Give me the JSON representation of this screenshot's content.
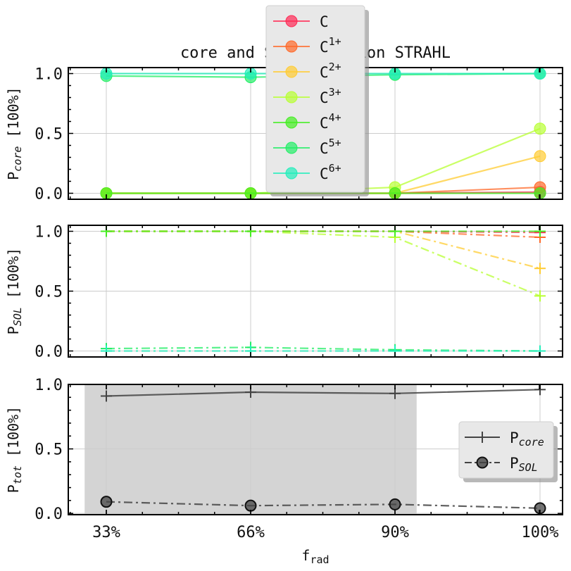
{
  "figure_title": "core and SOL radiation STRAHL",
  "chart_data": [
    {
      "type": "line",
      "id": "core",
      "ylabel_main": "P",
      "ylabel_sub": "core",
      "ylabel_unit": "[100%]",
      "ylim": [
        -0.05,
        1.05
      ],
      "yticks": [
        "0.0",
        "0.5",
        "1.0"
      ],
      "x_categories": [
        "33%",
        "66%",
        "90%",
        "100%"
      ],
      "marker": "circle",
      "linestyle": "solid",
      "series": [
        {
          "name": "C",
          "color": "#ff2a55",
          "values": [
            0.0,
            0.0,
            0.0,
            0.01
          ]
        },
        {
          "name": "C^{1+}",
          "color": "#ff6a2a",
          "values": [
            0.0,
            0.0,
            0.0,
            0.05
          ]
        },
        {
          "name": "C^{2+}",
          "color": "#ffcc33",
          "values": [
            0.0,
            0.0,
            0.0,
            0.31
          ]
        },
        {
          "name": "C^{3+}",
          "color": "#b8ff33",
          "values": [
            0.0,
            0.0,
            0.05,
            0.54
          ]
        },
        {
          "name": "C^{4+}",
          "color": "#44ee22",
          "values": [
            0.0,
            0.0,
            0.0,
            0.0
          ]
        },
        {
          "name": "C^{5+}",
          "color": "#22ee66",
          "values": [
            0.98,
            0.97,
            0.99,
            1.0
          ]
        },
        {
          "name": "C^{6+}",
          "color": "#22eebb",
          "values": [
            1.0,
            1.0,
            1.0,
            1.0
          ]
        }
      ],
      "legend": {
        "placement": "top-center",
        "entries": [
          "C",
          "C",
          "C",
          "C",
          "C",
          "C",
          "C"
        ],
        "superscripts": [
          "",
          "1+",
          "2+",
          "3+",
          "4+",
          "5+",
          "6+"
        ]
      }
    },
    {
      "type": "line",
      "id": "sol",
      "ylabel_main": "P",
      "ylabel_sub": "SOL",
      "ylabel_unit": "[100%]",
      "ylim": [
        -0.05,
        1.05
      ],
      "yticks": [
        "0.0",
        "0.5",
        "1.0"
      ],
      "x_categories": [
        "33%",
        "66%",
        "90%",
        "100%"
      ],
      "marker": "plus",
      "linestyle": "dashdot",
      "series": [
        {
          "name": "C",
          "color": "#ff2a55",
          "values": [
            1.0,
            1.0,
            1.0,
            0.99
          ]
        },
        {
          "name": "C^{1+}",
          "color": "#ff6a2a",
          "values": [
            1.0,
            1.0,
            1.0,
            0.95
          ]
        },
        {
          "name": "C^{2+}",
          "color": "#ffcc33",
          "values": [
            1.0,
            1.0,
            1.0,
            0.69
          ]
        },
        {
          "name": "C^{3+}",
          "color": "#b8ff33",
          "values": [
            1.0,
            1.0,
            0.95,
            0.46
          ]
        },
        {
          "name": "C^{4+}",
          "color": "#44ee22",
          "values": [
            1.0,
            1.0,
            1.0,
            1.0
          ]
        },
        {
          "name": "C^{5+}",
          "color": "#22ee66",
          "values": [
            0.02,
            0.03,
            0.01,
            0.0
          ]
        },
        {
          "name": "C^{6+}",
          "color": "#22eebb",
          "values": [
            0.0,
            0.0,
            0.0,
            0.0
          ]
        }
      ]
    },
    {
      "type": "line",
      "id": "tot",
      "ylabel_main": "P",
      "ylabel_sub": "tot",
      "ylabel_unit": "[100%]",
      "ylim": [
        -0.01,
        1.0
      ],
      "yticks": [
        "0.0",
        "0.5",
        "1.0"
      ],
      "x_categories": [
        "33%",
        "66%",
        "90%",
        "100%"
      ],
      "xlabel_main": "f",
      "xlabel_sub": "rad",
      "shaded_span": {
        "from_index": -0.15,
        "to_index": 2.15,
        "color": "#d4d4d4"
      },
      "series": [
        {
          "name": "P",
          "sub": "core",
          "color": "#444444",
          "marker": "plus",
          "linestyle": "solid",
          "values": [
            0.91,
            0.94,
            0.93,
            0.96
          ]
        },
        {
          "name": "P",
          "sub": "SOL",
          "color": "#444444",
          "marker": "circle",
          "linestyle": "dashdot",
          "values": [
            0.09,
            0.06,
            0.07,
            0.04
          ]
        }
      ],
      "legend": {
        "placement": "right"
      }
    }
  ]
}
